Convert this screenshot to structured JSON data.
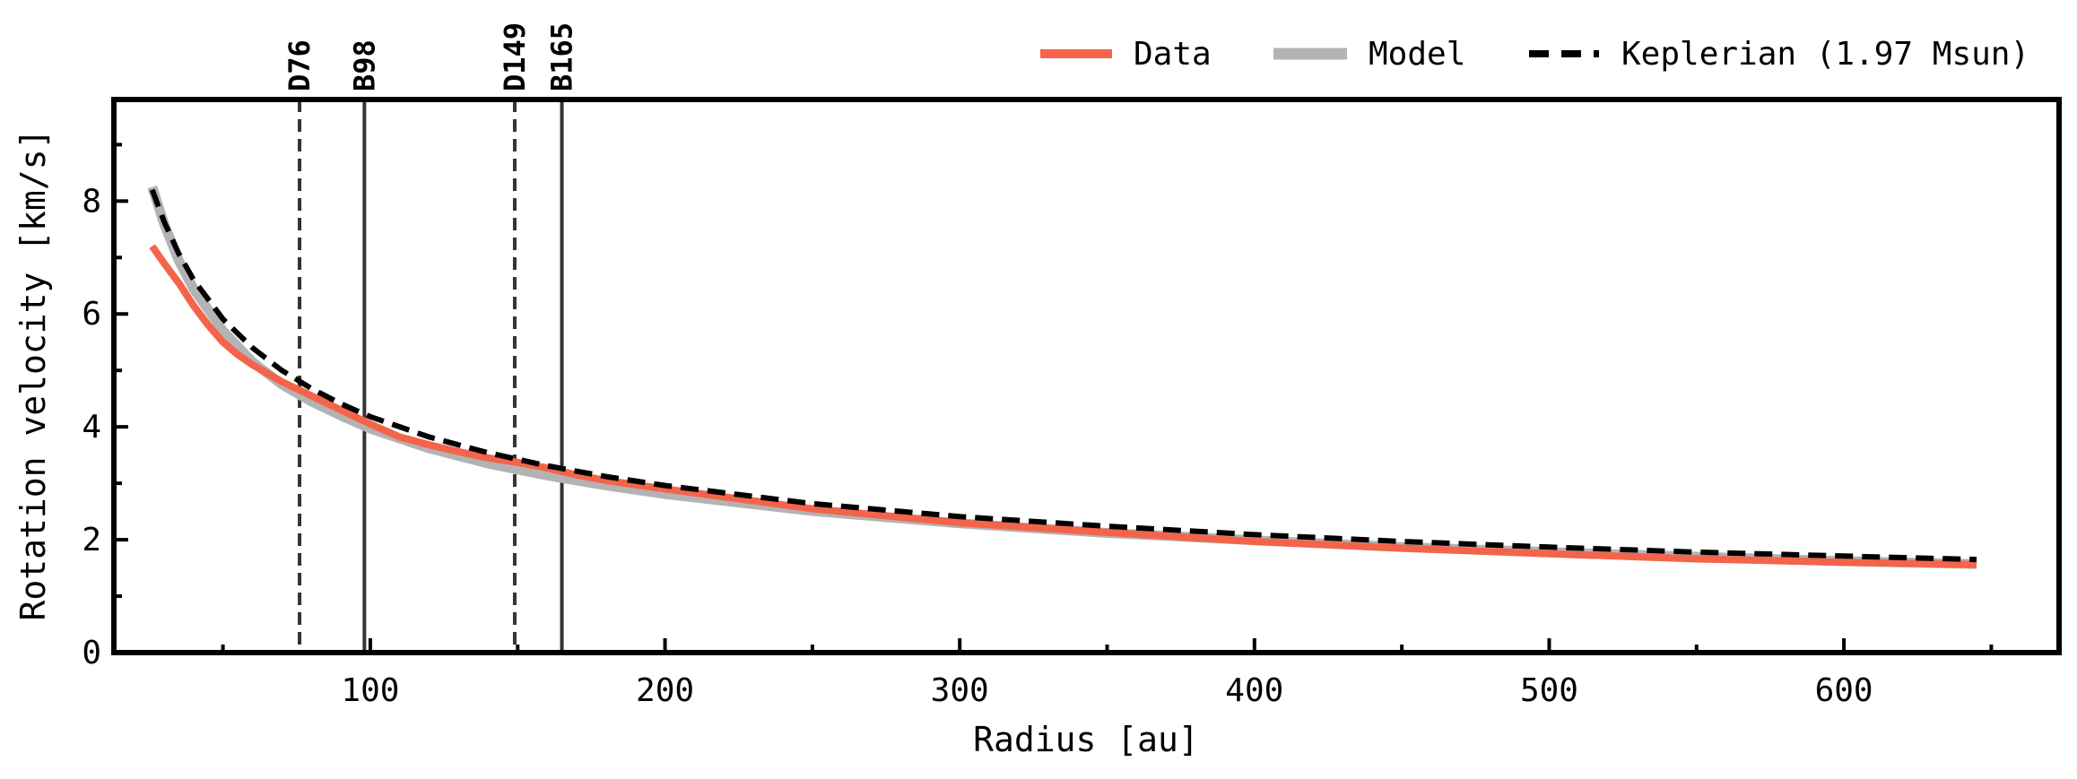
{
  "chart_data": {
    "type": "line",
    "xlabel": "Radius [au]",
    "ylabel": "Rotation velocity [km/s]",
    "xlim": [
      13,
      673
    ],
    "ylim": [
      0,
      9.8
    ],
    "x_ticks": [
      100,
      200,
      300,
      400,
      500,
      600
    ],
    "y_ticks": [
      0,
      2,
      4,
      6,
      8
    ],
    "grid": false,
    "legend": {
      "placement": "top-right, above axes",
      "entries": [
        {
          "label": "Data",
          "style": "solid",
          "color": "#f4644a"
        },
        {
          "label": "Model",
          "style": "solid",
          "color": "#b3b3b3"
        },
        {
          "label": "Keplerian (1.97 Msun)",
          "style": "dashed",
          "color": "#000000"
        }
      ]
    },
    "ring_markers": [
      {
        "label": "D76",
        "x": 76,
        "style": "dashed"
      },
      {
        "label": "B98",
        "x": 98,
        "style": "solid"
      },
      {
        "label": "D149",
        "x": 149,
        "style": "dashed"
      },
      {
        "label": "B165",
        "x": 165,
        "style": "solid"
      }
    ],
    "series": [
      {
        "name": "Data",
        "color": "#f4644a",
        "x": [
          26,
          30,
          35,
          40,
          45,
          50,
          55,
          60,
          70,
          80,
          90,
          100,
          110,
          120,
          130,
          140,
          150,
          160,
          170,
          180,
          200,
          250,
          300,
          350,
          400,
          450,
          500,
          550,
          600,
          645
        ],
        "y": [
          7.2,
          6.9,
          6.55,
          6.15,
          5.8,
          5.5,
          5.28,
          5.1,
          4.8,
          4.55,
          4.3,
          4.05,
          3.82,
          3.68,
          3.56,
          3.45,
          3.37,
          3.27,
          3.15,
          3.05,
          2.9,
          2.55,
          2.3,
          2.13,
          1.97,
          1.85,
          1.75,
          1.66,
          1.6,
          1.56
        ]
      },
      {
        "name": "Model",
        "color": "#b3b3b3",
        "x": [
          26,
          30,
          35,
          40,
          50,
          60,
          70,
          80,
          90,
          100,
          120,
          140,
          160,
          180,
          200,
          250,
          300,
          350,
          400,
          450,
          500,
          550,
          600,
          645
        ],
        "y": [
          8.25,
          7.6,
          6.95,
          6.45,
          5.7,
          5.15,
          4.75,
          4.45,
          4.2,
          3.97,
          3.62,
          3.35,
          3.14,
          2.96,
          2.81,
          2.51,
          2.29,
          2.12,
          1.99,
          1.87,
          1.78,
          1.7,
          1.62,
          1.57
        ]
      },
      {
        "name": "Keplerian (1.97 Msun)",
        "color": "#000000",
        "x": [
          26,
          30,
          35,
          40,
          50,
          60,
          70,
          80,
          90,
          100,
          120,
          140,
          160,
          180,
          200,
          250,
          300,
          350,
          400,
          450,
          500,
          550,
          600,
          645
        ],
        "y": [
          8.2,
          7.64,
          7.07,
          6.61,
          5.91,
          5.4,
          5.0,
          4.68,
          4.41,
          4.18,
          3.82,
          3.54,
          3.31,
          3.12,
          2.96,
          2.64,
          2.41,
          2.24,
          2.09,
          1.97,
          1.87,
          1.78,
          1.71,
          1.65
        ]
      }
    ]
  }
}
